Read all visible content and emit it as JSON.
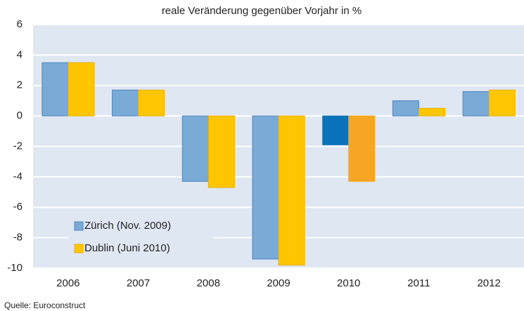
{
  "chart_data": {
    "type": "bar",
    "title": "reale Veränderung gegenüber Vorjahr in %",
    "categories": [
      "2006",
      "2007",
      "2008",
      "2009",
      "2010",
      "2011",
      "2012"
    ],
    "series": [
      {
        "name": "Zürich (Nov. 2009)",
        "color": "#7aaad6",
        "colors": [
          "#7aaad6",
          "#7aaad6",
          "#7aaad6",
          "#7aaad6",
          "#0a72b9",
          "#7aaad6",
          "#7aaad6"
        ],
        "values": [
          3.5,
          1.7,
          -4.3,
          -9.4,
          -1.9,
          1.0,
          1.6
        ]
      },
      {
        "name": "Dublin (Juni 2010)",
        "color": "#ffc600",
        "colors": [
          "#ffc600",
          "#ffc600",
          "#ffc600",
          "#ffc600",
          "#f6a623",
          "#ffc600",
          "#ffc600"
        ],
        "values": [
          3.5,
          1.7,
          -4.7,
          -9.8,
          -4.3,
          0.5,
          1.7
        ]
      }
    ],
    "ylim": [
      -10,
      6
    ],
    "yticks": [
      -10,
      -8,
      -6,
      -4,
      -2,
      0,
      2,
      4,
      6
    ],
    "grid": true,
    "legend": "lower-left",
    "source": "Quelle: Euroconstruct"
  }
}
